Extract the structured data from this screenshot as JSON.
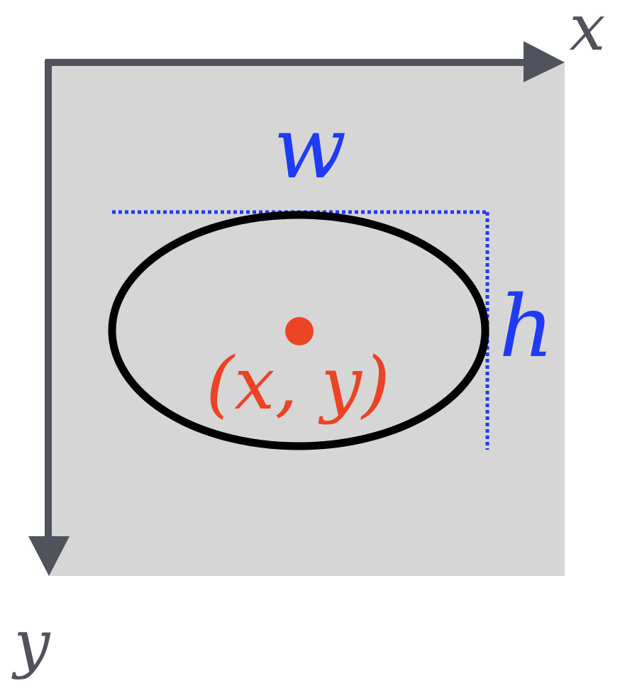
{
  "labels": {
    "axis_x": "x",
    "axis_y": "y",
    "width": "w",
    "height": "h",
    "center": "(x, y)"
  },
  "colors": {
    "background": "#ffffff",
    "canvas": "#d6d6d6",
    "axis": "#50535b",
    "ellipse": "#000000",
    "dimension": "#1f3bf5",
    "center": "#ec4324"
  },
  "icons": {
    "x_axis_arrow": "arrow-right-icon",
    "y_axis_arrow": "arrow-down-icon",
    "center_point": "dot-icon"
  }
}
